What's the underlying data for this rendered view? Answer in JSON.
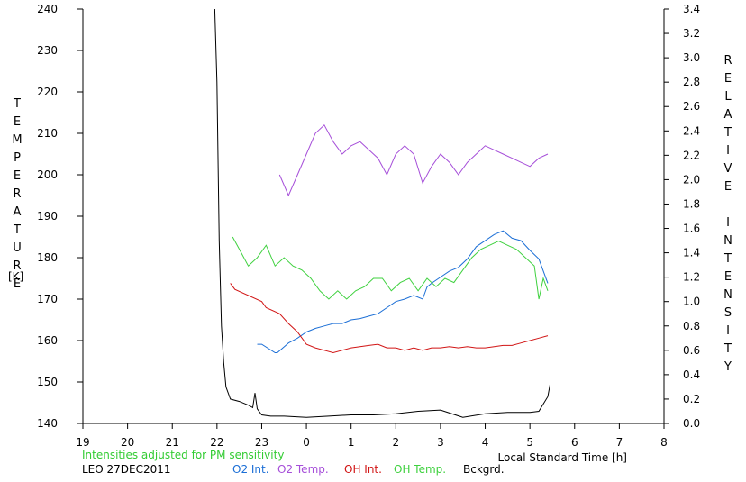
{
  "chart_data": {
    "type": "line",
    "left_axis": {
      "label_letters": [
        "T",
        "E",
        "M",
        "P",
        "E",
        "R",
        "A",
        "T",
        "U",
        "R",
        "E"
      ],
      "unit": "[K]",
      "ylim": [
        140,
        240
      ],
      "ticks": [
        "140",
        "150",
        "160",
        "170",
        "180",
        "190",
        "200",
        "210",
        "220",
        "230",
        "240"
      ]
    },
    "right_axis": {
      "label_letters": [
        "R",
        "E",
        "L",
        "A",
        "T",
        "I",
        "V",
        "E",
        " ",
        "I",
        "N",
        "T",
        "E",
        "N",
        "S",
        "I",
        "T",
        "Y"
      ],
      "ylim": [
        0.0,
        3.4
      ],
      "ticks": [
        "0.0",
        "0.2",
        "0.4",
        "0.6",
        "0.8",
        "1.0",
        "1.2",
        "1.4",
        "1.6",
        "1.8",
        "2.0",
        "2.2",
        "2.4",
        "2.6",
        "2.8",
        "3.0",
        "3.2",
        "3.4"
      ]
    },
    "x_axis": {
      "label": "Local Standard Time [h]",
      "range_hours_elapsed": [
        0,
        13
      ],
      "ticks": [
        "19",
        "20",
        "21",
        "22",
        "23",
        "0",
        "1",
        "2",
        "3",
        "4",
        "5",
        "6",
        "7",
        "8"
      ]
    },
    "note": "Intensities adjusted for PM sensitivity",
    "station": "LEO 27DEC2011",
    "legend": [
      {
        "label": "O2 Int.",
        "color": "#1c6fd6"
      },
      {
        "label": "O2 Temp.",
        "color": "#a64fd9"
      },
      {
        "label": "OH Int.",
        "color": "#d11414"
      },
      {
        "label": "OH Temp.",
        "color": "#3fd13f"
      },
      {
        "label": "Bckgrd.",
        "color": "#000000"
      }
    ],
    "series": [
      {
        "name": "O2 Int.",
        "axis": "right",
        "color": "#1c6fd6",
        "points": [
          [
            3.9,
            0.65
          ],
          [
            4.0,
            0.65
          ],
          [
            4.3,
            0.58
          ],
          [
            4.35,
            0.58
          ],
          [
            4.6,
            0.66
          ],
          [
            4.8,
            0.7
          ],
          [
            5.0,
            0.75
          ],
          [
            5.2,
            0.78
          ],
          [
            5.4,
            0.8
          ],
          [
            5.6,
            0.82
          ],
          [
            5.8,
            0.82
          ],
          [
            6.0,
            0.85
          ],
          [
            6.2,
            0.86
          ],
          [
            6.4,
            0.88
          ],
          [
            6.6,
            0.9
          ],
          [
            6.8,
            0.95
          ],
          [
            7.0,
            1.0
          ],
          [
            7.2,
            1.02
          ],
          [
            7.4,
            1.05
          ],
          [
            7.6,
            1.02
          ],
          [
            7.7,
            1.12
          ],
          [
            7.8,
            1.15
          ],
          [
            8.0,
            1.2
          ],
          [
            8.2,
            1.25
          ],
          [
            8.4,
            1.28
          ],
          [
            8.6,
            1.35
          ],
          [
            8.8,
            1.45
          ],
          [
            9.0,
            1.5
          ],
          [
            9.2,
            1.55
          ],
          [
            9.4,
            1.58
          ],
          [
            9.6,
            1.52
          ],
          [
            9.8,
            1.5
          ],
          [
            10.0,
            1.42
          ],
          [
            10.2,
            1.35
          ],
          [
            10.4,
            1.15
          ]
        ]
      },
      {
        "name": "O2 Temp.",
        "axis": "left",
        "color": "#a64fd9",
        "points": [
          [
            4.4,
            200
          ],
          [
            4.6,
            195
          ],
          [
            4.8,
            200
          ],
          [
            5.0,
            205
          ],
          [
            5.2,
            210
          ],
          [
            5.4,
            212
          ],
          [
            5.6,
            208
          ],
          [
            5.8,
            205
          ],
          [
            6.0,
            207
          ],
          [
            6.2,
            208
          ],
          [
            6.4,
            206
          ],
          [
            6.6,
            204
          ],
          [
            6.8,
            200
          ],
          [
            7.0,
            205
          ],
          [
            7.2,
            207
          ],
          [
            7.4,
            205
          ],
          [
            7.6,
            198
          ],
          [
            7.8,
            202
          ],
          [
            8.0,
            205
          ],
          [
            8.2,
            203
          ],
          [
            8.4,
            200
          ],
          [
            8.6,
            203
          ],
          [
            8.8,
            205
          ],
          [
            9.0,
            207
          ],
          [
            9.2,
            206
          ],
          [
            9.4,
            205
          ],
          [
            9.6,
            204
          ],
          [
            9.8,
            203
          ],
          [
            10.0,
            202
          ],
          [
            10.2,
            204
          ],
          [
            10.4,
            205
          ]
        ]
      },
      {
        "name": "OH Int.",
        "axis": "right",
        "color": "#d11414",
        "points": [
          [
            3.3,
            1.15
          ],
          [
            3.4,
            1.1
          ],
          [
            4.0,
            1.0
          ],
          [
            4.1,
            0.95
          ],
          [
            4.4,
            0.9
          ],
          [
            4.6,
            0.82
          ],
          [
            4.8,
            0.75
          ],
          [
            5.0,
            0.65
          ],
          [
            5.2,
            0.62
          ],
          [
            5.4,
            0.6
          ],
          [
            5.6,
            0.58
          ],
          [
            5.8,
            0.6
          ],
          [
            6.0,
            0.62
          ],
          [
            6.2,
            0.63
          ],
          [
            6.4,
            0.64
          ],
          [
            6.6,
            0.65
          ],
          [
            6.8,
            0.62
          ],
          [
            7.0,
            0.62
          ],
          [
            7.2,
            0.6
          ],
          [
            7.4,
            0.62
          ],
          [
            7.6,
            0.6
          ],
          [
            7.8,
            0.62
          ],
          [
            8.0,
            0.62
          ],
          [
            8.2,
            0.63
          ],
          [
            8.4,
            0.62
          ],
          [
            8.6,
            0.63
          ],
          [
            8.8,
            0.62
          ],
          [
            9.0,
            0.62
          ],
          [
            9.2,
            0.63
          ],
          [
            9.4,
            0.64
          ],
          [
            9.6,
            0.64
          ],
          [
            9.8,
            0.66
          ],
          [
            10.0,
            0.68
          ],
          [
            10.2,
            0.7
          ],
          [
            10.4,
            0.72
          ]
        ]
      },
      {
        "name": "OH Temp.",
        "axis": "left",
        "color": "#3fd13f",
        "points": [
          [
            3.35,
            185
          ],
          [
            3.5,
            182
          ],
          [
            3.7,
            178
          ],
          [
            3.9,
            180
          ],
          [
            4.1,
            183
          ],
          [
            4.3,
            178
          ],
          [
            4.5,
            180
          ],
          [
            4.7,
            178
          ],
          [
            4.9,
            177
          ],
          [
            5.1,
            175
          ],
          [
            5.3,
            172
          ],
          [
            5.5,
            170
          ],
          [
            5.7,
            172
          ],
          [
            5.9,
            170
          ],
          [
            6.1,
            172
          ],
          [
            6.3,
            173
          ],
          [
            6.5,
            175
          ],
          [
            6.7,
            175
          ],
          [
            6.9,
            172
          ],
          [
            7.1,
            174
          ],
          [
            7.3,
            175
          ],
          [
            7.5,
            172
          ],
          [
            7.7,
            175
          ],
          [
            7.9,
            173
          ],
          [
            8.1,
            175
          ],
          [
            8.3,
            174
          ],
          [
            8.5,
            177
          ],
          [
            8.7,
            180
          ],
          [
            8.9,
            182
          ],
          [
            9.1,
            183
          ],
          [
            9.3,
            184
          ],
          [
            9.5,
            183
          ],
          [
            9.7,
            182
          ],
          [
            9.9,
            180
          ],
          [
            10.1,
            178
          ],
          [
            10.2,
            170
          ],
          [
            10.3,
            175
          ],
          [
            10.4,
            172
          ]
        ]
      },
      {
        "name": "Bckgrd.",
        "axis": "right",
        "color": "#000000",
        "points": [
          [
            2.95,
            3.4
          ],
          [
            3.0,
            2.8
          ],
          [
            3.05,
            1.5
          ],
          [
            3.1,
            0.8
          ],
          [
            3.15,
            0.5
          ],
          [
            3.2,
            0.3
          ],
          [
            3.3,
            0.2
          ],
          [
            3.5,
            0.18
          ],
          [
            3.7,
            0.15
          ],
          [
            3.8,
            0.13
          ],
          [
            3.85,
            0.25
          ],
          [
            3.9,
            0.12
          ],
          [
            4.0,
            0.07
          ],
          [
            4.2,
            0.06
          ],
          [
            4.5,
            0.06
          ],
          [
            5.0,
            0.05
          ],
          [
            5.5,
            0.06
          ],
          [
            6.0,
            0.07
          ],
          [
            6.5,
            0.07
          ],
          [
            7.0,
            0.08
          ],
          [
            7.5,
            0.1
          ],
          [
            8.0,
            0.11
          ],
          [
            8.5,
            0.05
          ],
          [
            9.0,
            0.08
          ],
          [
            9.5,
            0.09
          ],
          [
            10.0,
            0.09
          ],
          [
            10.2,
            0.1
          ],
          [
            10.4,
            0.22
          ],
          [
            10.45,
            0.32
          ]
        ]
      }
    ]
  }
}
